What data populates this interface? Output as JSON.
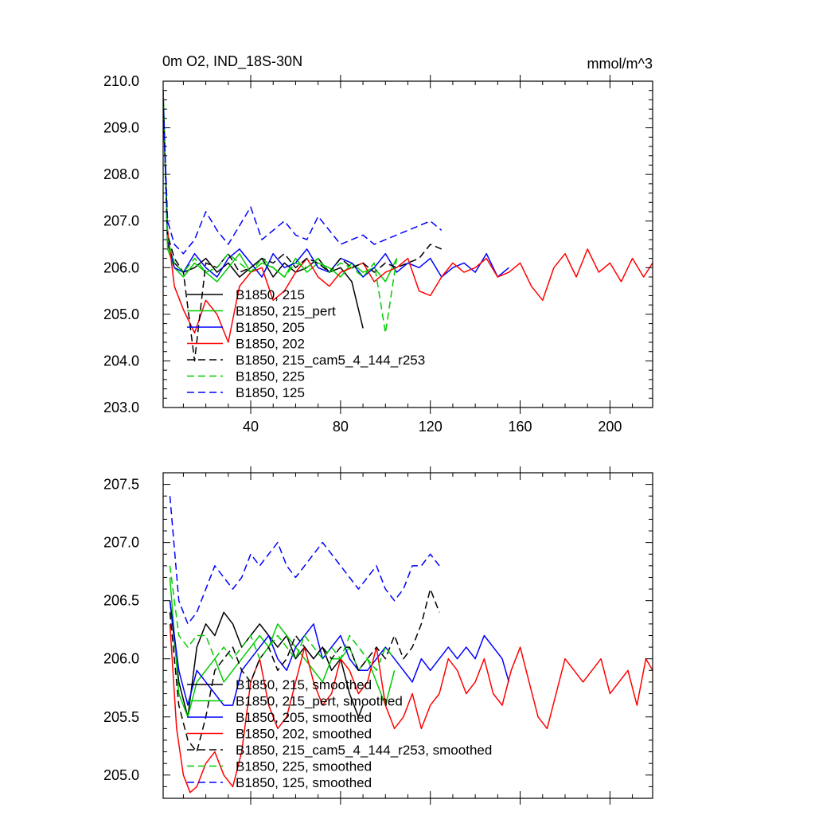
{
  "chart_data": [
    {
      "type": "line",
      "title": "0m O2, IND_18S-30N",
      "units": "mmol/m^3",
      "xlim": [
        1,
        219
      ],
      "ylim": [
        203.0,
        210.0
      ],
      "x_ticks": [
        40,
        80,
        120,
        160,
        200
      ],
      "y_ticks": [
        "210.0",
        "209.0",
        "208.0",
        "207.0",
        "206.0",
        "205.0",
        "204.0",
        "203.0"
      ],
      "y_tick_values": [
        210,
        209,
        208,
        207,
        206,
        205,
        204,
        203
      ],
      "legend": [
        "B1850, 215",
        "B1850, 215_pert",
        "B1850, 205",
        "B1850, 202",
        "B1850, 215_cam5_4_144_r253",
        "B1850, 225",
        "B1850, 125"
      ],
      "series": [
        {
          "name": "B1850, 215",
          "color": "#000000",
          "dash": false,
          "x": [
            1,
            3,
            6,
            10,
            15,
            20,
            25,
            30,
            35,
            40,
            45,
            50,
            55,
            60,
            65,
            70,
            75,
            80,
            85,
            90
          ],
          "values": [
            209.8,
            206.5,
            206.1,
            205.9,
            206.0,
            206.2,
            205.9,
            206.1,
            205.8,
            206.0,
            206.2,
            205.8,
            206.1,
            205.9,
            206.0,
            206.2,
            205.9,
            206.0,
            205.7,
            204.7
          ]
        },
        {
          "name": "B1850, 215_pert",
          "color": "#00cc00",
          "dash": false,
          "x": [
            1,
            3,
            6,
            10,
            15,
            20,
            25,
            30,
            35,
            40,
            45,
            50,
            55,
            60,
            65,
            70,
            75,
            80,
            85,
            90,
            95,
            100,
            105
          ],
          "values": [
            209.7,
            206.4,
            206.0,
            205.8,
            206.1,
            205.9,
            205.7,
            206.0,
            206.3,
            205.9,
            206.1,
            206.0,
            205.8,
            206.2,
            205.9,
            206.1,
            206.0,
            205.8,
            206.1,
            205.9,
            206.0,
            205.7,
            206.2
          ]
        },
        {
          "name": "B1850, 205",
          "color": "#0000ff",
          "dash": false,
          "x": [
            1,
            3,
            6,
            10,
            15,
            20,
            25,
            30,
            35,
            40,
            45,
            50,
            55,
            60,
            65,
            70,
            75,
            80,
            85,
            90,
            95,
            100,
            105,
            110,
            115,
            120,
            125,
            130,
            135,
            140,
            145,
            150,
            155
          ],
          "values": [
            209.6,
            206.6,
            206.0,
            205.9,
            206.3,
            206.0,
            205.8,
            206.2,
            206.4,
            206.1,
            205.8,
            206.3,
            206.0,
            206.1,
            206.4,
            206.0,
            205.9,
            206.2,
            206.1,
            205.8,
            206.0,
            206.3,
            205.9,
            206.1,
            206.0,
            206.2,
            205.8,
            206.0,
            206.1,
            205.9,
            206.3,
            205.8,
            206.0
          ]
        },
        {
          "name": "B1850, 202",
          "color": "#ff0000",
          "dash": false,
          "x": [
            3,
            6,
            10,
            15,
            20,
            25,
            30,
            35,
            40,
            45,
            50,
            55,
            60,
            65,
            70,
            75,
            80,
            85,
            90,
            95,
            100,
            105,
            110,
            115,
            120,
            125,
            130,
            135,
            140,
            145,
            150,
            155,
            160,
            165,
            170,
            175,
            180,
            185,
            190,
            195,
            200,
            205,
            210,
            215,
            219
          ],
          "values": [
            206.8,
            205.6,
            205.1,
            204.6,
            205.3,
            205.0,
            204.4,
            205.6,
            205.9,
            206.0,
            205.3,
            205.5,
            205.9,
            206.2,
            205.8,
            205.6,
            205.9,
            206.0,
            206.1,
            205.7,
            205.9,
            206.0,
            206.2,
            205.5,
            205.4,
            205.8,
            206.1,
            205.9,
            206.0,
            206.2,
            205.8,
            205.9,
            206.1,
            205.6,
            205.3,
            206.0,
            206.3,
            205.8,
            206.4,
            205.9,
            206.1,
            205.7,
            206.2,
            205.8,
            206.1
          ]
        },
        {
          "name": "B1850, 215_cam5_4_144_r253",
          "color": "#000000",
          "dash": true,
          "x": [
            1,
            3,
            6,
            10,
            15,
            20,
            25,
            30,
            35,
            40,
            45,
            50,
            55,
            60,
            65,
            70,
            75,
            80,
            85,
            90,
            95,
            100,
            105,
            110,
            115,
            120,
            125
          ],
          "values": [
            209.5,
            206.7,
            206.2,
            205.9,
            204.0,
            206.1,
            206.0,
            206.3,
            205.9,
            206.0,
            206.2,
            206.1,
            206.3,
            206.0,
            206.2,
            206.1,
            205.9,
            206.2,
            206.0,
            206.1,
            205.9,
            206.1,
            206.0,
            206.1,
            206.2,
            206.5,
            206.4
          ]
        },
        {
          "name": "B1850, 225",
          "color": "#00cc00",
          "dash": true,
          "x": [
            1,
            3,
            6,
            10,
            15,
            20,
            25,
            30,
            35,
            40,
            45,
            50,
            55,
            60,
            65,
            70,
            75,
            80,
            85,
            90,
            95,
            100,
            105
          ],
          "values": [
            209.8,
            206.6,
            206.1,
            205.9,
            206.2,
            205.9,
            206.0,
            206.3,
            206.1,
            205.9,
            206.2,
            206.0,
            205.8,
            206.1,
            206.0,
            206.2,
            205.9,
            206.1,
            206.0,
            205.8,
            206.1,
            204.6,
            206.2
          ]
        },
        {
          "name": "B1850, 125",
          "color": "#0000ff",
          "dash": true,
          "x": [
            1,
            3,
            6,
            10,
            15,
            20,
            25,
            30,
            35,
            40,
            45,
            50,
            55,
            60,
            65,
            70,
            75,
            80,
            85,
            90,
            95,
            100,
            105,
            110,
            115,
            120,
            125
          ],
          "values": [
            209.6,
            207.0,
            206.5,
            206.3,
            206.6,
            207.2,
            206.8,
            206.5,
            206.9,
            207.3,
            206.6,
            206.8,
            207.0,
            206.7,
            206.6,
            207.1,
            206.8,
            206.5,
            206.6,
            206.7,
            206.5,
            206.6,
            206.7,
            206.8,
            206.9,
            207.0,
            206.8
          ]
        }
      ]
    },
    {
      "type": "line",
      "xlim": [
        1,
        219
      ],
      "ylim": [
        204.8,
        207.6
      ],
      "y_ticks": [
        "207.5",
        "207.0",
        "206.5",
        "206.0",
        "205.5",
        "205.0"
      ],
      "y_tick_values": [
        207.5,
        207.0,
        206.5,
        206.0,
        205.5,
        205.0
      ],
      "legend": [
        "B1850, 215, smoothed",
        "B1850, 215_pert, smoothed",
        "B1850, 205, smoothed",
        "B1850, 202, smoothed",
        "B1850, 215_cam5_4_144_r253, smoothed",
        "B1850, 225, smoothed",
        "B1850, 125, smoothed"
      ],
      "series": [
        {
          "name": "B1850, 215, smoothed",
          "color": "#000000",
          "dash": false,
          "x": [
            4,
            8,
            12,
            16,
            20,
            24,
            28,
            32,
            36,
            40,
            44,
            48,
            52,
            56,
            60,
            64,
            68,
            72,
            76,
            80,
            84,
            88,
            90
          ],
          "values": [
            206.5,
            205.8,
            205.5,
            206.1,
            206.3,
            206.2,
            206.4,
            206.3,
            206.1,
            206.2,
            206.3,
            206.2,
            206.1,
            206.2,
            206.0,
            206.1,
            206.0,
            206.1,
            205.9,
            206.0,
            205.7,
            205.5,
            205.6
          ]
        },
        {
          "name": "B1850, 215_pert, smoothed",
          "color": "#00cc00",
          "dash": false,
          "x": [
            4,
            8,
            12,
            16,
            20,
            24,
            28,
            32,
            36,
            40,
            44,
            48,
            52,
            56,
            60,
            64,
            68,
            72,
            76,
            80,
            84,
            88,
            92,
            96,
            100,
            104
          ],
          "values": [
            206.7,
            205.7,
            205.5,
            205.8,
            205.9,
            206.0,
            205.8,
            205.9,
            206.0,
            206.1,
            206.2,
            206.1,
            206.3,
            206.2,
            206.1,
            206.0,
            205.9,
            205.8,
            206.0,
            206.0,
            206.1,
            205.9,
            206.0,
            205.8,
            205.6,
            205.9
          ]
        },
        {
          "name": "B1850, 205, smoothed",
          "color": "#0000ff",
          "dash": false,
          "x": [
            4,
            8,
            12,
            16,
            20,
            24,
            28,
            32,
            36,
            40,
            44,
            48,
            52,
            56,
            60,
            64,
            68,
            72,
            76,
            80,
            84,
            88,
            92,
            96,
            100,
            104,
            108,
            112,
            116,
            120,
            124,
            128,
            132,
            136,
            140,
            144,
            148,
            152,
            155
          ],
          "values": [
            206.5,
            205.9,
            205.6,
            205.9,
            205.8,
            205.7,
            205.6,
            205.6,
            205.9,
            206.0,
            206.1,
            206.2,
            206.0,
            205.9,
            206.1,
            206.2,
            206.3,
            206.0,
            206.1,
            206.2,
            206.0,
            205.9,
            205.9,
            206.0,
            206.1,
            206.0,
            205.9,
            205.8,
            206.0,
            205.9,
            206.0,
            206.1,
            206.0,
            206.1,
            206.0,
            206.2,
            206.1,
            206.0,
            205.8
          ]
        },
        {
          "name": "B1850, 202, smoothed",
          "color": "#ff0000",
          "dash": false,
          "x": [
            4,
            7,
            10,
            13,
            16,
            20,
            24,
            28,
            32,
            36,
            40,
            44,
            48,
            52,
            56,
            60,
            64,
            68,
            72,
            76,
            80,
            84,
            88,
            92,
            96,
            100,
            104,
            108,
            112,
            116,
            120,
            124,
            128,
            132,
            136,
            140,
            144,
            148,
            152,
            156,
            160,
            164,
            168,
            172,
            176,
            180,
            184,
            188,
            192,
            196,
            200,
            204,
            208,
            212,
            216,
            219
          ],
          "values": [
            206.3,
            205.4,
            205.0,
            204.85,
            204.9,
            205.1,
            205.2,
            205.0,
            204.9,
            205.2,
            205.8,
            206.0,
            205.6,
            205.4,
            205.5,
            205.8,
            206.1,
            205.8,
            205.6,
            205.7,
            206.0,
            205.9,
            205.7,
            205.8,
            206.1,
            205.6,
            205.4,
            205.5,
            205.7,
            205.4,
            205.6,
            205.7,
            206.0,
            205.9,
            205.7,
            205.8,
            206.0,
            205.7,
            205.6,
            205.9,
            206.1,
            205.8,
            205.5,
            205.4,
            205.7,
            206.0,
            205.9,
            205.8,
            205.9,
            206.0,
            205.7,
            205.8,
            205.9,
            205.6,
            206.0,
            205.9
          ]
        },
        {
          "name": "B1850, 215_cam5_4_144_r253, smoothed",
          "color": "#000000",
          "dash": true,
          "x": [
            4,
            8,
            12,
            16,
            20,
            24,
            28,
            32,
            36,
            40,
            44,
            48,
            52,
            56,
            60,
            64,
            68,
            72,
            76,
            80,
            84,
            88,
            92,
            96,
            100,
            104,
            108,
            112,
            116,
            120,
            124
          ],
          "values": [
            206.4,
            205.6,
            205.3,
            205.2,
            205.5,
            205.9,
            206.0,
            206.1,
            205.9,
            205.8,
            206.0,
            206.1,
            205.9,
            206.0,
            206.2,
            206.1,
            206.0,
            206.1,
            206.0,
            206.1,
            206.1,
            205.9,
            206.0,
            206.1,
            206.0,
            206.2,
            206.0,
            206.1,
            206.3,
            206.6,
            206.4
          ]
        },
        {
          "name": "B1850, 225, smoothed",
          "color": "#00cc00",
          "dash": true,
          "x": [
            4,
            8,
            12,
            16,
            20,
            24,
            28,
            32,
            36,
            40,
            44,
            48,
            52,
            56,
            60,
            64,
            68,
            72,
            76,
            80,
            84,
            88,
            92,
            96,
            100,
            104
          ],
          "values": [
            206.8,
            206.2,
            206.1,
            206.2,
            206.2,
            206.0,
            206.1,
            206.0,
            206.1,
            206.2,
            206.0,
            206.1,
            206.2,
            206.1,
            206.0,
            206.2,
            206.1,
            206.0,
            206.1,
            206.0,
            206.2,
            206.1,
            206.0,
            205.9,
            206.1,
            206.0
          ]
        },
        {
          "name": "B1850, 125, smoothed",
          "color": "#0000ff",
          "dash": true,
          "x": [
            4,
            8,
            12,
            16,
            20,
            24,
            28,
            32,
            36,
            40,
            44,
            48,
            52,
            56,
            60,
            64,
            68,
            72,
            76,
            80,
            84,
            88,
            92,
            96,
            100,
            104,
            108,
            112,
            116,
            120,
            124
          ],
          "values": [
            207.4,
            206.5,
            206.3,
            206.4,
            206.6,
            206.8,
            206.7,
            206.6,
            206.7,
            206.9,
            206.8,
            206.9,
            207.0,
            206.8,
            206.7,
            206.8,
            206.9,
            207.0,
            206.9,
            206.8,
            206.7,
            206.6,
            206.7,
            206.8,
            206.6,
            206.5,
            206.6,
            206.8,
            206.8,
            206.9,
            206.8
          ]
        }
      ]
    }
  ]
}
